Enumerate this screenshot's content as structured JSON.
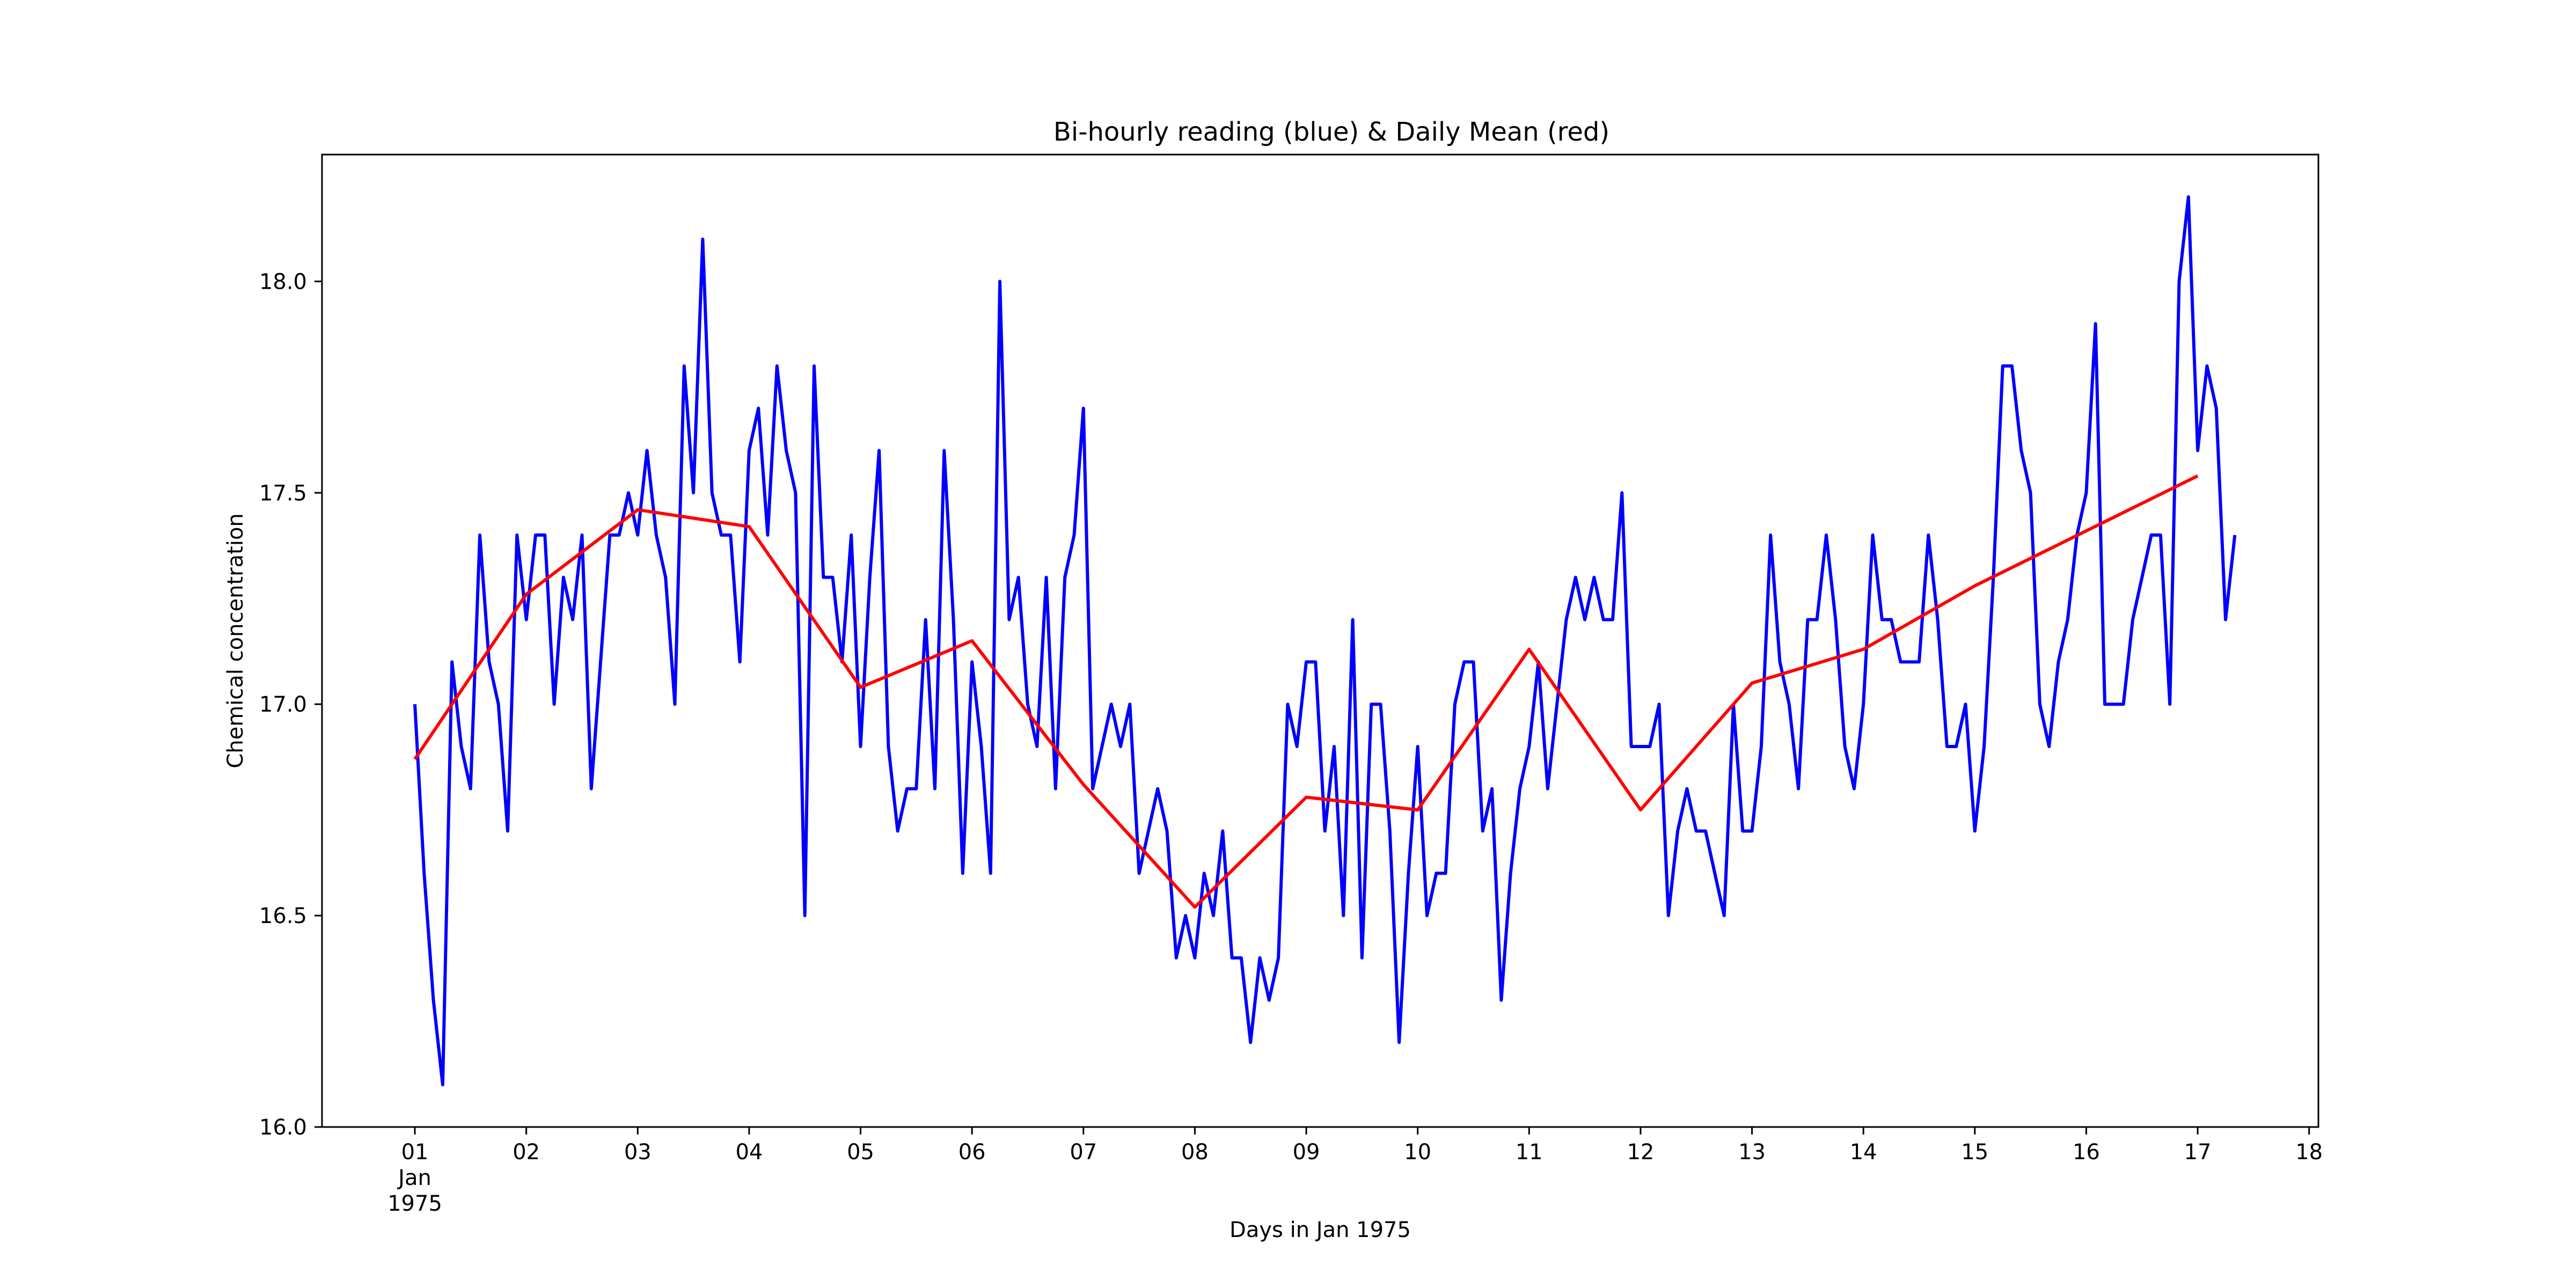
{
  "chart_data": {
    "type": "line",
    "title": "Bi-hourly reading (blue) & Daily Mean (red)",
    "xlabel": "Days in Jan 1975",
    "ylabel": "Chemical concentration",
    "ylim": [
      16.0,
      18.3
    ],
    "xlim": [
      "1974-12-31T04:00",
      "1975-01-18T02:00"
    ],
    "grid": false,
    "x_tick_labels": [
      "01",
      "02",
      "03",
      "04",
      "05",
      "06",
      "07",
      "08",
      "09",
      "10",
      "11",
      "12",
      "13",
      "14",
      "15",
      "16",
      "17",
      "18"
    ],
    "x_first_tick_extra": [
      "Jan",
      "1975"
    ],
    "y_tick_labels": [
      "16.0",
      "16.5",
      "17.0",
      "17.5",
      "18.0"
    ],
    "series": [
      {
        "color": "#0000ff",
        "x_start": "1975-01-01T00:00",
        "x_step_hours": 2,
        "values": [
          17.0,
          16.6,
          16.3,
          16.1,
          17.1,
          16.9,
          16.8,
          17.4,
          17.1,
          17.0,
          16.7,
          17.4,
          17.2,
          17.4,
          17.4,
          17.0,
          17.3,
          17.2,
          17.4,
          16.8,
          17.1,
          17.4,
          17.4,
          17.5,
          17.4,
          17.6,
          17.4,
          17.3,
          17.0,
          17.8,
          17.5,
          18.1,
          17.5,
          17.4,
          17.4,
          17.1,
          17.6,
          17.7,
          17.4,
          17.8,
          17.6,
          17.5,
          16.5,
          17.8,
          17.3,
          17.3,
          17.1,
          17.4,
          16.9,
          17.3,
          17.6,
          16.9,
          16.7,
          16.8,
          16.8,
          17.2,
          16.8,
          17.6,
          17.2,
          16.6,
          17.1,
          16.9,
          16.6,
          18.0,
          17.2,
          17.3,
          17.0,
          16.9,
          17.3,
          16.8,
          17.3,
          17.4,
          17.7,
          16.8,
          16.9,
          17.0,
          16.9,
          17.0,
          16.6,
          16.7,
          16.8,
          16.7,
          16.4,
          16.5,
          16.4,
          16.6,
          16.5,
          16.7,
          16.4,
          16.4,
          16.2,
          16.4,
          16.3,
          16.4,
          17.0,
          16.9,
          17.1,
          17.1,
          16.7,
          16.9,
          16.5,
          17.2,
          16.4,
          17.0,
          17.0,
          16.7,
          16.2,
          16.6,
          16.9,
          16.5,
          16.6,
          16.6,
          17.0,
          17.1,
          17.1,
          16.7,
          16.8,
          16.3,
          16.6,
          16.8,
          16.9,
          17.1,
          16.8,
          17.0,
          17.2,
          17.3,
          17.2,
          17.3,
          17.2,
          17.2,
          17.5,
          16.9,
          16.9,
          16.9,
          17.0,
          16.5,
          16.7,
          16.8,
          16.7,
          16.7,
          16.6,
          16.5,
          17.0,
          16.7,
          16.7,
          16.9,
          17.4,
          17.1,
          17.0,
          16.8,
          17.2,
          17.2,
          17.4,
          17.2,
          16.9,
          16.8,
          17.0,
          17.4,
          17.2,
          17.2,
          17.1,
          17.1,
          17.1,
          17.4,
          17.2,
          16.9,
          16.9,
          17.0,
          16.7,
          16.9,
          17.3,
          17.8,
          17.8,
          17.6,
          17.5,
          17.0,
          16.9,
          17.1,
          17.2,
          17.4,
          17.5,
          17.9,
          17.0,
          17.0,
          17.0,
          17.2,
          17.3,
          17.4,
          17.4,
          17.0,
          18.0,
          18.2,
          17.6,
          17.8,
          17.7,
          17.2,
          17.4
        ]
      },
      {
        "color": "#ff0000",
        "x": [
          "1975-01-01",
          "1975-01-02",
          "1975-01-03",
          "1975-01-04",
          "1975-01-05",
          "1975-01-06",
          "1975-01-07",
          "1975-01-08",
          "1975-01-09",
          "1975-01-10",
          "1975-01-11",
          "1975-01-12",
          "1975-01-13",
          "1975-01-14",
          "1975-01-15",
          "1975-01-16",
          "1975-01-17"
        ],
        "values": [
          16.87,
          17.26,
          17.46,
          17.42,
          17.04,
          17.15,
          16.81,
          16.52,
          16.78,
          16.75,
          17.13,
          16.75,
          17.05,
          17.13,
          17.28,
          17.41,
          17.54
        ]
      }
    ]
  }
}
